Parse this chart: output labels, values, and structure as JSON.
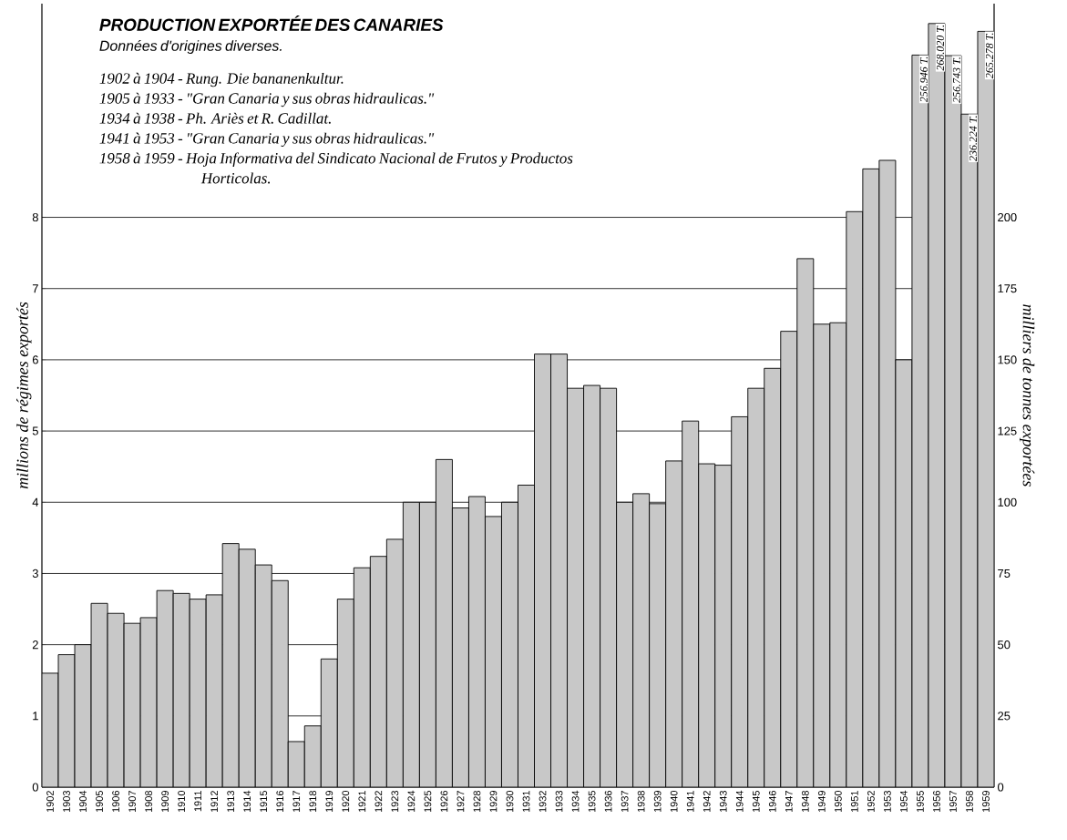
{
  "chart_data": {
    "type": "bar",
    "title": "PRODUCTION EXPORTÉE DES CANARIES",
    "subtitle": "Données d'origines diverses.",
    "ylabel": "millions de régimes exportés",
    "y2label": "milliers de tonnes exportées",
    "annotations": [
      "1902 à 1904 - Rung. Die bananenkultur.",
      "1905 à 1933 - \"Gran Canaria y sus obras hidraulicas.\"",
      "1934 à 1938 - Ph. Ariès et R. Cadillat.",
      "1941 à 1953 - \"Gran Canaria y sus obras hidraulicas.\"",
      "1958 à 1959 - Hoja Informativa del Sindicato Nacional de Frutos y Productos Horticolas."
    ],
    "categories": [
      "1902",
      "1903",
      "1904",
      "1905",
      "1906",
      "1907",
      "1908",
      "1909",
      "1910",
      "1911",
      "1912",
      "1913",
      "1914",
      "1915",
      "1916",
      "1917",
      "1918",
      "1919",
      "1920",
      "1921",
      "1922",
      "1923",
      "1924",
      "1925",
      "1926",
      "1927",
      "1928",
      "1929",
      "1930",
      "1931",
      "1932",
      "1933",
      "1934",
      "1935",
      "1936",
      "1937",
      "1938",
      "1939",
      "1940",
      "1941",
      "1942",
      "1943",
      "1944",
      "1945",
      "1946",
      "1947",
      "1948",
      "1949",
      "1950",
      "1951",
      "1952",
      "1953",
      "1954",
      "1955",
      "1956",
      "1957",
      "1958",
      "1959"
    ],
    "series": [
      {
        "axis": "y2",
        "color": "#c8c8c8",
        "values": [
          40,
          46.5,
          50,
          64.5,
          61,
          57.5,
          59.5,
          69,
          68,
          66,
          67.5,
          85.5,
          83.5,
          78,
          72.5,
          16,
          21.5,
          45,
          66,
          77,
          81,
          87,
          100,
          100,
          115,
          98,
          102,
          95,
          100,
          106,
          152,
          152,
          140,
          141,
          140,
          100,
          103,
          99.5,
          114.5,
          128.5,
          113.5,
          113,
          130,
          140,
          147,
          160,
          185.5,
          162.5,
          163,
          202,
          217,
          220,
          150,
          256.946,
          268.02,
          256.743,
          236.224,
          265.278
        ],
        "value_labels": [
          null,
          null,
          null,
          null,
          null,
          null,
          null,
          null,
          null,
          null,
          null,
          null,
          null,
          null,
          null,
          null,
          null,
          null,
          null,
          null,
          null,
          null,
          null,
          null,
          null,
          null,
          null,
          null,
          null,
          null,
          null,
          null,
          null,
          null,
          null,
          null,
          null,
          null,
          null,
          null,
          null,
          null,
          null,
          null,
          null,
          null,
          null,
          null,
          null,
          null,
          null,
          null,
          null,
          "256.946 T.",
          "268.020 T.",
          "256.743 T.",
          "236.224 T.",
          "265.278 T."
        ]
      }
    ],
    "ylim": [
      0,
      11
    ],
    "yticks": [
      0,
      1,
      2,
      3,
      4,
      5,
      6,
      7,
      8
    ],
    "y2lim": [
      0,
      275
    ],
    "y2ticks": [
      0,
      25,
      50,
      75,
      100,
      125,
      150,
      175,
      200
    ],
    "grid": "y"
  }
}
